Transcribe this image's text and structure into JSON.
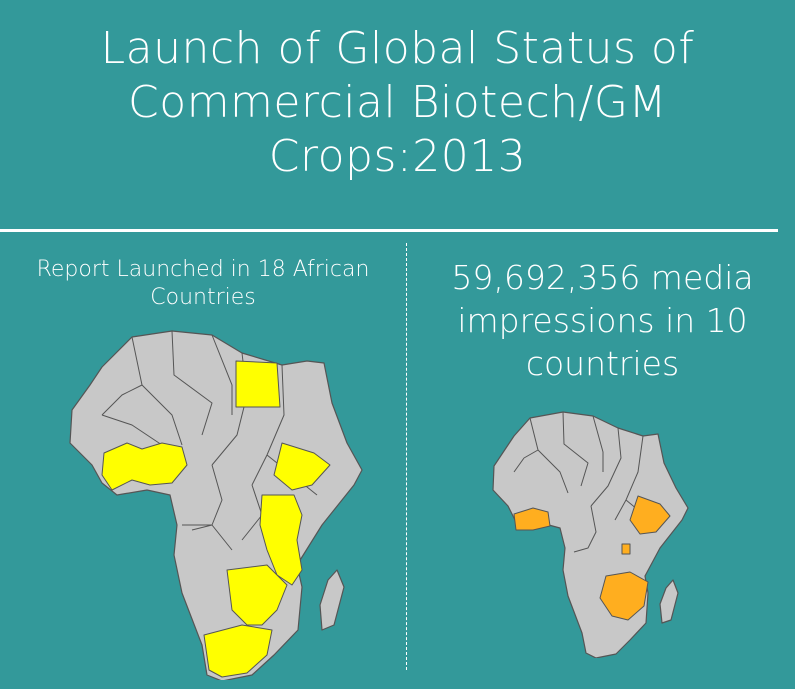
{
  "title": {
    "line1": "Launch of Global Status of",
    "line2": "Commercial Biotech/GM",
    "line3": "Crops:2013"
  },
  "left_panel": {
    "heading_line1": "Report Launched in 18 African",
    "heading_line2": "Countries",
    "highlight_color": "#ffff00"
  },
  "right_panel": {
    "heading_line1": "59,692,356 media",
    "heading_line2": "impressions in 10",
    "heading_line3": "countries",
    "highlight_color": "#ffae1f"
  },
  "colors": {
    "background": "#33999a",
    "land": "#c8c8c8"
  }
}
